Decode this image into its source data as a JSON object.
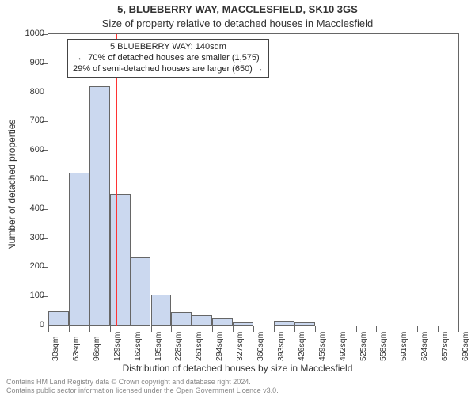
{
  "title_line1": "5, BLUEBERRY WAY, MACCLESFIELD, SK10 3GS",
  "title_line2": "Size of property relative to detached houses in Macclesfield",
  "yaxis_title": "Number of detached properties",
  "xaxis_title": "Distribution of detached houses by size in Macclesfield",
  "chart": {
    "type": "histogram",
    "background_color": "#ffffff",
    "border_color": "#666666",
    "bar_fill": "#cbd8ef",
    "bar_border": "#666666",
    "refline_color": "#ff3333",
    "refline_x": 140,
    "ylim": [
      0,
      1000
    ],
    "ytick_step": 100,
    "yticks": [
      0,
      100,
      200,
      300,
      400,
      500,
      600,
      700,
      800,
      900,
      1000
    ],
    "x_start": 30,
    "x_step": 33,
    "x_labels": [
      "30sqm",
      "63sqm",
      "96sqm",
      "129sqm",
      "162sqm",
      "195sqm",
      "228sqm",
      "261sqm",
      "294sqm",
      "327sqm",
      "360sqm",
      "393sqm",
      "426sqm",
      "459sqm",
      "492sqm",
      "525sqm",
      "558sqm",
      "591sqm",
      "624sqm",
      "657sqm",
      "690sqm"
    ],
    "values": [
      50,
      525,
      820,
      450,
      235,
      105,
      45,
      35,
      25,
      12,
      0,
      15,
      10,
      0,
      0,
      0,
      0,
      0,
      0,
      0
    ],
    "axis_fontsize": 11,
    "label_fontsize": 12,
    "title_fontsize": 13
  },
  "annotation": {
    "line1": "5 BLUEBERRY WAY: 140sqm",
    "line2": "← 70% of detached houses are smaller (1,575)",
    "line3": "29% of semi-detached houses are larger (650) →",
    "border_color": "#444444",
    "background": "#ffffff",
    "fontsize": 11
  },
  "footer": {
    "line1": "Contains HM Land Registry data © Crown copyright and database right 2024.",
    "line2": "Contains public sector information licensed under the Open Government Licence v3.0.",
    "color": "#888888",
    "fontsize": 9
  }
}
